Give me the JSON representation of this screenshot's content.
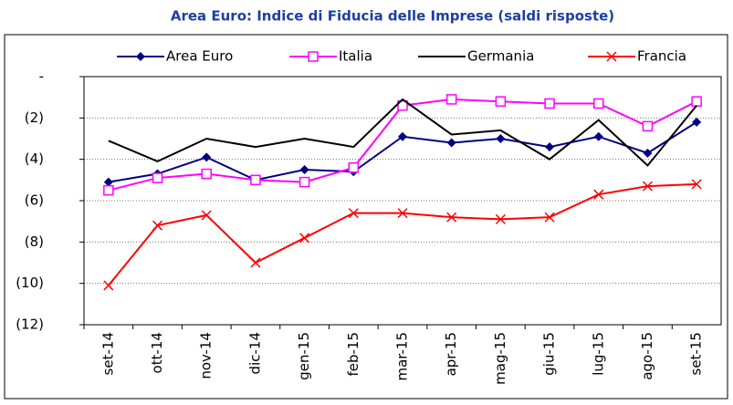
{
  "chart_data": {
    "type": "line",
    "title": "Area Euro: Indice di Fiducia delle Imprese (saldi risposte)",
    "categories": [
      "set-14",
      "ott-14",
      "nov-14",
      "dic-14",
      "gen-15",
      "feb-15",
      "mar-15",
      "apr-15",
      "mag-15",
      "giu-15",
      "lug-15",
      "ago-15",
      "set-15"
    ],
    "series": [
      {
        "name": "Area Euro",
        "color": "#000080",
        "marker": "diamond",
        "values": [
          -5.1,
          -4.7,
          -3.9,
          -5.0,
          -4.5,
          -4.6,
          -2.9,
          -3.2,
          -3.0,
          -3.4,
          -2.9,
          -3.7,
          -2.2
        ]
      },
      {
        "name": "Italia",
        "color": "#ff00ff",
        "marker": "square",
        "values": [
          -5.5,
          -4.9,
          -4.7,
          -5.0,
          -5.1,
          -4.4,
          -1.4,
          -1.1,
          -1.2,
          -1.3,
          -1.3,
          -2.4,
          -1.2
        ]
      },
      {
        "name": "Germania",
        "color": "#000000",
        "marker": "none",
        "values": [
          -3.1,
          -4.1,
          -3.0,
          -3.4,
          -3.0,
          -3.4,
          -1.1,
          -2.8,
          -2.6,
          -4.0,
          -2.1,
          -4.3,
          -1.4
        ]
      },
      {
        "name": "Francia",
        "color": "#ff0000",
        "marker": "cross",
        "values": [
          -10.1,
          -7.2,
          -6.7,
          -9.0,
          -7.8,
          -6.6,
          -6.6,
          -6.8,
          -6.9,
          -6.8,
          -5.7,
          -5.3,
          -5.2
        ]
      }
    ],
    "ylim": [
      -12,
      0
    ],
    "yticks": [
      {
        "value": 0,
        "label": "-"
      },
      {
        "value": -2,
        "label": "(2)"
      },
      {
        "value": -4,
        "label": "(4)"
      },
      {
        "value": -6,
        "label": "(6)"
      },
      {
        "value": -8,
        "label": "(8)"
      },
      {
        "value": -10,
        "label": "(10)"
      },
      {
        "value": -12,
        "label": "(12)"
      }
    ],
    "grid": true,
    "legend": "top"
  }
}
